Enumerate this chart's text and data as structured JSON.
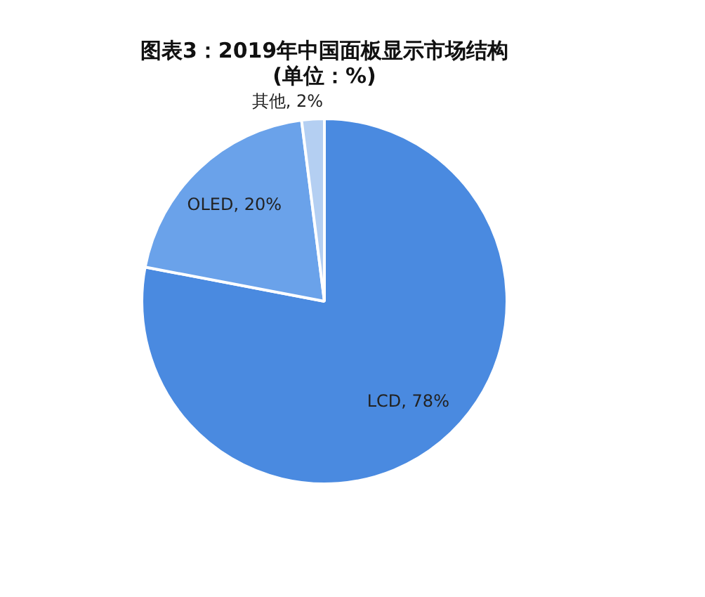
{
  "chart_data": {
    "type": "pie",
    "title": "图表3：2019年中国面板显示市场结构",
    "subtitle": "(单位：%)",
    "categories": [
      "LCD",
      "OLED",
      "其他"
    ],
    "values": [
      78,
      20,
      2
    ],
    "colors": [
      "#4a8ae0",
      "#6aa2ea",
      "#b4cff2"
    ],
    "value_labels": [
      "78%",
      "20%",
      "2%"
    ],
    "legend": false
  }
}
